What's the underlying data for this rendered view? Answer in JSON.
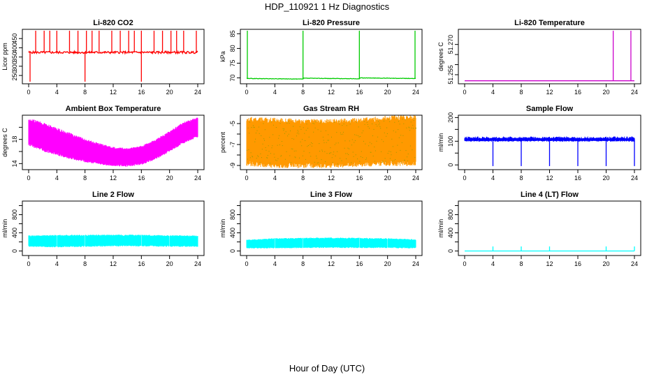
{
  "figure": {
    "title": "HDP_110921  1 Hz Diagnostics",
    "xlabel": "Hour of Day (UTC)"
  },
  "chart_data": [
    {
      "type": "line",
      "title": "Li-820 CO2",
      "ylabel": "Licor ppm",
      "color": "#ff0000",
      "xlim": [
        0,
        24
      ],
      "xticks": [
        0,
        4,
        8,
        12,
        16,
        20,
        24
      ],
      "ylim": [
        205,
        500
      ],
      "yticks": [
        250,
        300,
        350,
        400,
        450
      ],
      "pattern": "co2",
      "series": [
        {
          "x": [
            0,
            2,
            4,
            6,
            8,
            10,
            12,
            14,
            16,
            18,
            20,
            22,
            24
          ],
          "values": [
            375,
            375,
            375,
            375,
            375,
            375,
            375,
            375,
            375,
            375,
            375,
            375,
            375
          ]
        }
      ],
      "spikes_up": [
        1.0,
        2.2,
        3.0,
        4.0,
        5.8,
        7.0,
        8.2,
        9.0,
        10.0,
        11.8,
        13.0,
        14.2,
        15.0,
        16.0,
        17.8,
        19.0,
        20.2,
        21.0,
        22.0,
        23.8
      ],
      "spikes_down": [
        0.2,
        8.0,
        16.0
      ]
    },
    {
      "type": "line",
      "title": "Li-820 Pressure",
      "ylabel": "kPa",
      "color": "#00cc00",
      "xlim": [
        0,
        24
      ],
      "xticks": [
        0,
        4,
        8,
        12,
        16,
        20,
        24
      ],
      "ylim": [
        68,
        86.5
      ],
      "yticks": [
        70,
        75,
        80,
        85
      ],
      "pattern": "pressure",
      "series": [
        {
          "x": [
            0,
            4,
            8,
            8.05,
            12,
            16,
            16.05,
            20,
            24
          ],
          "values": [
            69.8,
            69.7,
            69.6,
            69.9,
            69.8,
            69.7,
            70.0,
            69.9,
            69.8
          ]
        }
      ],
      "spikes_up": [
        0.1,
        8.0,
        16.0,
        23.9
      ]
    },
    {
      "type": "line",
      "title": "Li-820 Temperature",
      "ylabel": "degrees C",
      "color": "#cc00cc",
      "xlim": [
        0,
        24
      ],
      "xticks": [
        0,
        4,
        8,
        12,
        16,
        20,
        24
      ],
      "ylim": [
        51.2505,
        51.2775
      ],
      "yticks": [
        51.255,
        51.26,
        51.265,
        51.27
      ],
      "ytick_labels": [
        "51.255",
        "",
        "",
        "51.270"
      ],
      "pattern": "flat",
      "series": [
        {
          "x": [
            0,
            24
          ],
          "values": [
            51.252,
            51.252
          ]
        }
      ],
      "spikes_up": [
        21.0,
        23.5
      ]
    },
    {
      "type": "area",
      "title": "Ambient Box Temperature",
      "ylabel": "degrees C",
      "color": "#ff00ff",
      "xlim": [
        0,
        24
      ],
      "xticks": [
        0,
        4,
        8,
        12,
        16,
        20,
        24
      ],
      "ylim": [
        13,
        22
      ],
      "yticks": [
        14,
        16,
        18,
        20
      ],
      "ytick_labels": [
        "14",
        "",
        "18",
        ""
      ],
      "pattern": "band",
      "series": [
        {
          "name": "upper",
          "x": [
            0,
            2,
            4,
            6,
            8,
            10,
            12,
            14,
            16,
            18,
            20,
            22,
            24
          ],
          "values": [
            21.3,
            20.6,
            19.7,
            18.8,
            17.9,
            17.2,
            16.6,
            16.4,
            16.8,
            17.8,
            19.2,
            20.7,
            21.5
          ]
        },
        {
          "name": "lower",
          "x": [
            0,
            2,
            4,
            6,
            8,
            10,
            12,
            14,
            16,
            18,
            20,
            22,
            24
          ],
          "values": [
            17.3,
            16.4,
            15.7,
            15.0,
            14.5,
            14.1,
            13.8,
            13.7,
            14.0,
            14.9,
            16.2,
            17.6,
            18.6
          ]
        }
      ]
    },
    {
      "type": "area",
      "title": "Gas Stream RH",
      "ylabel": "percent",
      "color": "#ff9900",
      "color2": "#999900",
      "xlim": [
        0,
        24
      ],
      "xticks": [
        0,
        4,
        8,
        12,
        16,
        20,
        24
      ],
      "ylim": [
        -9.4,
        -4.2
      ],
      "yticks": [
        -9,
        -8,
        -7,
        -6,
        -5
      ],
      "ytick_labels": [
        "-9",
        "",
        "-7",
        "",
        "-5"
      ],
      "pattern": "band",
      "series": [
        {
          "name": "upper",
          "x": [
            0,
            4,
            8,
            12,
            16,
            20,
            24
          ],
          "values": [
            -4.6,
            -4.7,
            -4.8,
            -4.8,
            -4.7,
            -4.5,
            -4.4
          ]
        },
        {
          "name": "lower",
          "x": [
            0,
            4,
            8,
            12,
            16,
            20,
            24
          ],
          "values": [
            -8.7,
            -8.9,
            -8.9,
            -8.9,
            -8.8,
            -8.7,
            -8.7
          ]
        }
      ]
    },
    {
      "type": "line",
      "title": "Sample Flow",
      "ylabel": "ml/min",
      "color": "#0000ff",
      "xlim": [
        0,
        24
      ],
      "xticks": [
        0,
        4,
        8,
        12,
        16,
        20,
        24
      ],
      "ylim": [
        -20,
        210
      ],
      "yticks": [
        0,
        50,
        100,
        150,
        200
      ],
      "ytick_labels": [
        "0",
        "",
        "100",
        "",
        "200"
      ],
      "pattern": "flow",
      "series": [
        {
          "x": [
            0,
            24
          ],
          "values": [
            108,
            108
          ]
        }
      ],
      "band": [
        98,
        120
      ],
      "spikes_down": [
        4.0,
        8.0,
        12.0,
        16.0,
        20.0,
        24.0
      ]
    },
    {
      "type": "area",
      "title": "Line 2 Flow",
      "ylabel": "ml/min",
      "color": "#00ffff",
      "xlim": [
        0,
        24
      ],
      "xticks": [
        0,
        4,
        8,
        12,
        16,
        20,
        24
      ],
      "ylim": [
        -100,
        1100
      ],
      "yticks": [
        0,
        200,
        400,
        600,
        800,
        1000
      ],
      "ytick_labels": [
        "0",
        "400",
        "800"
      ],
      "ytick_label_values": [
        0,
        400,
        800
      ],
      "pattern": "band",
      "series": [
        {
          "name": "upper",
          "x": [
            0,
            4,
            8,
            12,
            16,
            20,
            24
          ],
          "values": [
            330,
            340,
            345,
            350,
            345,
            335,
            330
          ]
        },
        {
          "name": "lower",
          "x": [
            0,
            4,
            8,
            12,
            16,
            20,
            24
          ],
          "values": [
            110,
            100,
            110,
            120,
            120,
            110,
            110
          ]
        }
      ],
      "gaps": [
        4.0,
        8.0,
        12.0,
        16.0,
        20.0
      ]
    },
    {
      "type": "area",
      "title": "Line 3 Flow",
      "ylabel": "ml/min",
      "color": "#00ffff",
      "xlim": [
        0,
        24
      ],
      "xticks": [
        0,
        4,
        8,
        12,
        16,
        20,
        24
      ],
      "ylim": [
        -100,
        1100
      ],
      "yticks": [
        0,
        200,
        400,
        600,
        800,
        1000
      ],
      "ytick_labels": [
        "0",
        "400",
        "800"
      ],
      "ytick_label_values": [
        0,
        400,
        800
      ],
      "pattern": "band",
      "series": [
        {
          "name": "upper",
          "x": [
            0,
            4,
            8,
            12,
            16,
            20,
            24
          ],
          "values": [
            240,
            270,
            280,
            285,
            280,
            270,
            250
          ]
        },
        {
          "name": "lower",
          "x": [
            0,
            4,
            8,
            12,
            16,
            20,
            24
          ],
          "values": [
            70,
            75,
            80,
            85,
            80,
            80,
            70
          ]
        }
      ],
      "gaps": [
        4.0,
        8.0,
        12.0,
        16.0,
        20.0
      ]
    },
    {
      "type": "line",
      "title": "Line 4 (LT) Flow",
      "ylabel": "ml/min",
      "color": "#00ffff",
      "xlim": [
        0,
        24
      ],
      "xticks": [
        0,
        4,
        8,
        12,
        16,
        20,
        24
      ],
      "ylim": [
        -100,
        1100
      ],
      "yticks": [
        0,
        200,
        400,
        600,
        800,
        1000
      ],
      "ytick_labels": [
        "0",
        "400",
        "800"
      ],
      "ytick_label_values": [
        0,
        400,
        800
      ],
      "pattern": "flat",
      "series": [
        {
          "x": [
            0,
            24
          ],
          "values": [
            0,
            0
          ]
        }
      ],
      "spikes_up": [
        4.0,
        8.0,
        12.0,
        20.0,
        24.0
      ],
      "spike_height": 100
    }
  ]
}
